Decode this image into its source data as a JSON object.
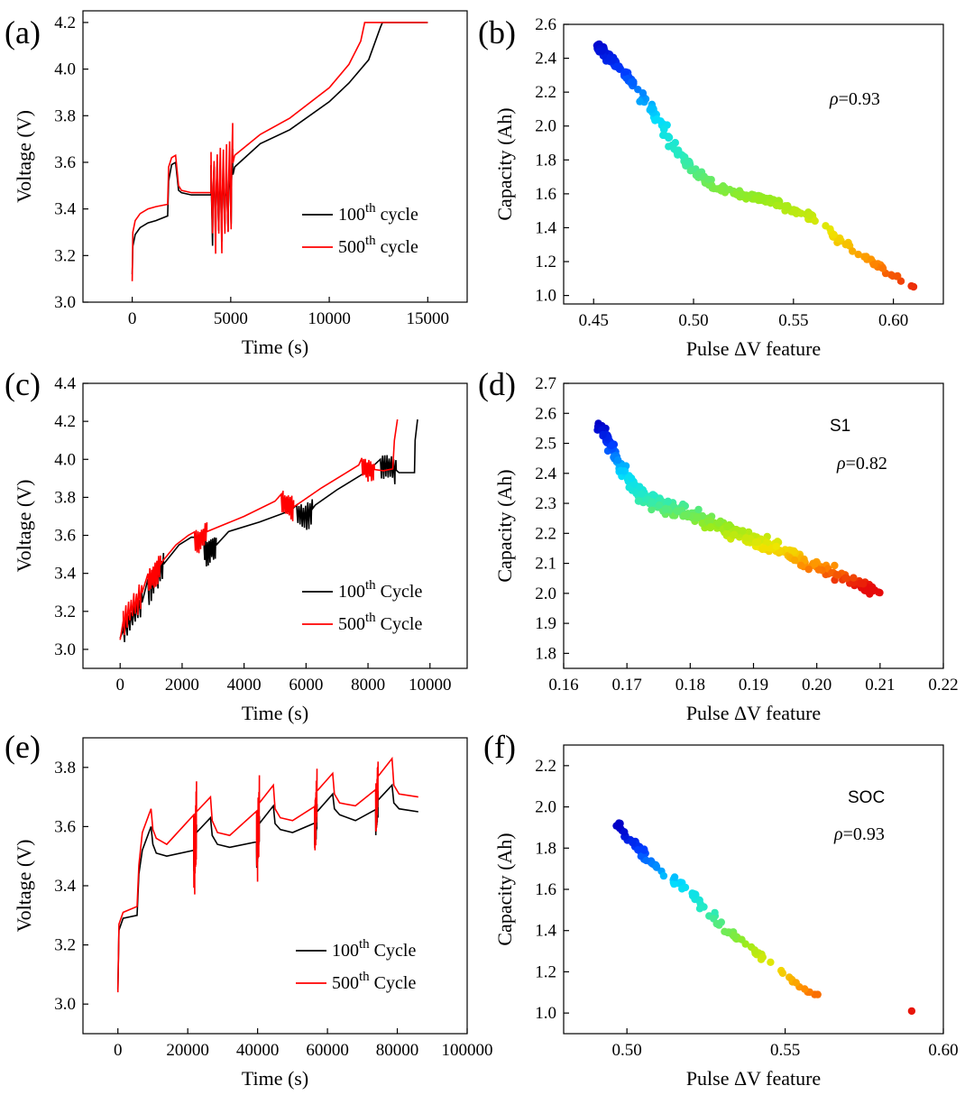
{
  "chart_data": [
    {
      "panel": "(a)",
      "type": "line",
      "xlabel": "Time (s)",
      "ylabel": "Voltage (V)",
      "xlim": [
        -2500,
        17000
      ],
      "ylim": [
        3.0,
        4.25
      ],
      "xticks": [
        0,
        5000,
        10000,
        15000
      ],
      "xtick_labels": [
        "0",
        "5000",
        "10000",
        "15000"
      ],
      "yticks": [
        3.0,
        3.2,
        3.4,
        3.6,
        3.8,
        4.0,
        4.2
      ],
      "ytick_labels": [
        "3.0",
        "3.2",
        "3.4",
        "3.6",
        "3.8",
        "4.0",
        "4.2"
      ],
      "legend": [
        {
          "base": "100",
          "sup": "th",
          "suffix": " cycle",
          "color": "#000000"
        },
        {
          "base": "500",
          "sup": "th",
          "suffix": " cycle",
          "color": "#ff0000"
        }
      ],
      "series": [
        {
          "name": "100th cycle",
          "color": "#000000",
          "x": [
            0,
            30,
            150,
            400,
            800,
            1200,
            1800,
            1850,
            2000,
            2200,
            2350,
            2500,
            3000,
            4000,
            4800,
            5100,
            5200,
            6500,
            8000,
            10000,
            11000,
            12000,
            12600,
            12700,
            15000
          ],
          "y": [
            3.12,
            3.24,
            3.29,
            3.32,
            3.34,
            3.35,
            3.37,
            3.52,
            3.59,
            3.6,
            3.48,
            3.47,
            3.46,
            3.46,
            3.46,
            3.55,
            3.58,
            3.68,
            3.74,
            3.86,
            3.94,
            4.04,
            4.18,
            4.2,
            4.2
          ],
          "osc": [
            {
              "x": 4000,
              "x2": 5100,
              "amp": 0.22
            }
          ]
        },
        {
          "name": "500th cycle",
          "color": "#ff0000",
          "x": [
            0,
            30,
            150,
            400,
            800,
            1200,
            1800,
            1850,
            2000,
            2200,
            2350,
            2500,
            3000,
            4000,
            4800,
            5100,
            5200,
            6500,
            8000,
            10000,
            11000,
            11600,
            11800,
            15000
          ],
          "y": [
            3.09,
            3.3,
            3.35,
            3.38,
            3.4,
            3.41,
            3.42,
            3.58,
            3.62,
            3.63,
            3.5,
            3.48,
            3.47,
            3.47,
            3.47,
            3.6,
            3.63,
            3.72,
            3.79,
            3.92,
            4.02,
            4.12,
            4.2,
            4.2
          ],
          "osc": [
            {
              "x": 4000,
              "x2": 5100,
              "amp": 0.3
            }
          ]
        }
      ]
    },
    {
      "panel": "(b)",
      "type": "scatter",
      "xlabel": "Pulse ΔV feature",
      "ylabel": "Capacity (Ah)",
      "xlim": [
        0.435,
        0.625
      ],
      "ylim": [
        0.95,
        2.6
      ],
      "xticks": [
        0.45,
        0.5,
        0.55,
        0.6
      ],
      "xtick_labels": [
        "0.45",
        "0.50",
        "0.55",
        "0.60"
      ],
      "yticks": [
        1.0,
        1.2,
        1.4,
        1.6,
        1.8,
        2.0,
        2.2,
        2.4,
        2.6
      ],
      "ytick_labels": [
        "1.0",
        "1.2",
        "1.4",
        "1.6",
        "1.8",
        "2.0",
        "2.2",
        "2.4",
        "2.6"
      ],
      "annotation": "ρ=0.93",
      "clim": [
        1.0,
        2.5
      ],
      "trend": [
        [
          0.452,
          2.47
        ],
        [
          0.46,
          2.38
        ],
        [
          0.47,
          2.25
        ],
        [
          0.48,
          2.08
        ],
        [
          0.49,
          1.88
        ],
        [
          0.5,
          1.74
        ],
        [
          0.51,
          1.65
        ],
        [
          0.52,
          1.61
        ],
        [
          0.54,
          1.55
        ],
        [
          0.56,
          1.46
        ],
        [
          0.58,
          1.27
        ],
        [
          0.6,
          1.12
        ],
        [
          0.61,
          1.05
        ]
      ],
      "x_dense": [
        0.452,
        0.575
      ],
      "x_sparse": [
        0.575,
        0.611
      ],
      "n": 300,
      "spread": 0.045,
      "xjitter": 0.004
    },
    {
      "panel": "(c)",
      "type": "line",
      "xlabel": "Time (s)",
      "ylabel": "Voltage (V)",
      "xlim": [
        -1200,
        11200
      ],
      "ylim": [
        2.9,
        4.4
      ],
      "xticks": [
        0,
        2000,
        4000,
        6000,
        8000,
        10000
      ],
      "xtick_labels": [
        "0",
        "2000",
        "4000",
        "6000",
        "8000",
        "10000"
      ],
      "yticks": [
        3.0,
        3.2,
        3.4,
        3.6,
        3.8,
        4.0,
        4.2,
        4.4
      ],
      "ytick_labels": [
        "3.0",
        "3.2",
        "3.4",
        "3.6",
        "3.8",
        "4.0",
        "4.2",
        "4.4"
      ],
      "legend": [
        {
          "base": "100",
          "sup": "th",
          "suffix": " Cycle",
          "color": "#000000"
        },
        {
          "base": "500",
          "sup": "th",
          "suffix": " Cycle",
          "color": "#ff0000"
        }
      ],
      "series": [
        {
          "name": "100th Cycle",
          "color": "#000000",
          "x": [
            0,
            100,
            700,
            1000,
            1400,
            1900,
            2300,
            2800,
            3100,
            3500,
            4500,
            5500,
            6000,
            6300,
            7000,
            8000,
            8600,
            9000,
            9500,
            9520,
            9600
          ],
          "y": [
            3.06,
            3.1,
            3.25,
            3.34,
            3.45,
            3.55,
            3.59,
            3.52,
            3.55,
            3.62,
            3.67,
            3.73,
            3.7,
            3.76,
            3.84,
            3.94,
            3.98,
            3.93,
            3.93,
            4.1,
            4.21
          ],
          "osc": [
            {
              "x": 100,
              "x2": 700,
              "amp": 0.08
            },
            {
              "x": 900,
              "x2": 1400,
              "amp": 0.09
            },
            {
              "x": 2700,
              "x2": 3100,
              "amp": 0.09
            },
            {
              "x": 5700,
              "x2": 6200,
              "amp": 0.09
            },
            {
              "x": 8400,
              "x2": 8900,
              "amp": 0.08
            }
          ]
        },
        {
          "name": "500th Cycle",
          "color": "#ff0000",
          "x": [
            0,
            100,
            700,
            1000,
            1400,
            1800,
            2200,
            2500,
            2800,
            4000,
            5000,
            5300,
            5600,
            6500,
            7700,
            8000,
            8500,
            8800,
            8850,
            8950
          ],
          "y": [
            3.05,
            3.15,
            3.3,
            3.38,
            3.47,
            3.55,
            3.6,
            3.57,
            3.62,
            3.7,
            3.78,
            3.78,
            3.75,
            3.85,
            3.97,
            3.95,
            3.94,
            3.95,
            4.1,
            4.21
          ],
          "osc": [
            {
              "x": 100,
              "x2": 700,
              "amp": 0.09
            },
            {
              "x": 900,
              "x2": 1300,
              "amp": 0.09
            },
            {
              "x": 2400,
              "x2": 2800,
              "amp": 0.08
            },
            {
              "x": 5200,
              "x2": 5600,
              "amp": 0.08
            },
            {
              "x": 7800,
              "x2": 8200,
              "amp": 0.07
            }
          ]
        }
      ]
    },
    {
      "panel": "(d)",
      "type": "scatter",
      "xlabel": "Pulse ΔV feature",
      "ylabel": "Capacity (Ah)",
      "xlim": [
        0.16,
        0.22
      ],
      "ylim": [
        1.75,
        2.7
      ],
      "xticks": [
        0.16,
        0.17,
        0.18,
        0.19,
        0.2,
        0.21,
        0.22
      ],
      "xtick_labels": [
        "0.16",
        "0.17",
        "0.18",
        "0.19",
        "0.20",
        "0.21",
        "0.22"
      ],
      "yticks": [
        1.8,
        1.9,
        2.0,
        2.1,
        2.2,
        2.3,
        2.4,
        2.5,
        2.6,
        2.7
      ],
      "ytick_labels": [
        "1.8",
        "1.9",
        "2.0",
        "2.1",
        "2.2",
        "2.3",
        "2.4",
        "2.5",
        "2.6",
        "2.7"
      ],
      "label": "S1",
      "annotation": "ρ=0.82",
      "clim": [
        2.02,
        2.56
      ],
      "trend": [
        [
          0.166,
          2.55
        ],
        [
          0.168,
          2.47
        ],
        [
          0.17,
          2.38
        ],
        [
          0.172,
          2.33
        ],
        [
          0.175,
          2.3
        ],
        [
          0.18,
          2.26
        ],
        [
          0.185,
          2.22
        ],
        [
          0.19,
          2.18
        ],
        [
          0.195,
          2.14
        ],
        [
          0.2,
          2.09
        ],
        [
          0.205,
          2.05
        ],
        [
          0.21,
          2.0
        ]
      ],
      "x_dense": [
        0.1655,
        0.203
      ],
      "x_sparse": [
        0.203,
        0.2105
      ],
      "n": 420,
      "spread": 0.045,
      "xjitter": 0.0008
    },
    {
      "panel": "(e)",
      "type": "line",
      "xlabel": "Time (s)",
      "ylabel": "Voltage (V)",
      "xlim": [
        -10000,
        100000
      ],
      "ylim": [
        2.9,
        3.9
      ],
      "xticks": [
        0,
        20000,
        40000,
        60000,
        80000,
        100000
      ],
      "xtick_labels": [
        "0",
        "20000",
        "40000",
        "60000",
        "80000",
        "100000"
      ],
      "yticks": [
        3.0,
        3.2,
        3.4,
        3.6,
        3.8
      ],
      "ytick_labels": [
        "3.0",
        "3.2",
        "3.4",
        "3.6",
        "3.8"
      ],
      "legend": [
        {
          "base": "100",
          "sup": "th",
          "suffix": " Cycle",
          "color": "#000000"
        },
        {
          "base": "500",
          "sup": "th",
          "suffix": " Cycle",
          "color": "#ff0000"
        }
      ],
      "series": [
        {
          "name": "100th Cycle",
          "color": "#000000",
          "x": [
            0,
            300,
            1500,
            5500,
            6000,
            7000,
            9500,
            10000,
            11000,
            14000,
            22000,
            22500,
            26500,
            27000,
            28500,
            32000,
            40000,
            40500,
            44500,
            45000,
            46500,
            50000,
            56500,
            57000,
            61500,
            62000,
            63500,
            68000,
            74000,
            74500,
            78500,
            79000,
            80500,
            86000
          ],
          "y": [
            3.05,
            3.25,
            3.29,
            3.3,
            3.44,
            3.52,
            3.6,
            3.54,
            3.51,
            3.5,
            3.49,
            3.58,
            3.63,
            3.57,
            3.54,
            3.53,
            3.52,
            3.61,
            3.67,
            3.61,
            3.59,
            3.58,
            3.58,
            3.65,
            3.71,
            3.66,
            3.64,
            3.62,
            3.63,
            3.69,
            3.74,
            3.68,
            3.66,
            3.65
          ],
          "osc": [
            {
              "x": 21700,
              "x2": 22500,
              "amp": 0.05
            },
            {
              "x": 39700,
              "x2": 40500,
              "amp": 0.06
            },
            {
              "x": 56300,
              "x2": 57000,
              "amp": 0.06
            },
            {
              "x": 73800,
              "x2": 74500,
              "amp": 0.06
            }
          ]
        },
        {
          "name": "500th Cycle",
          "color": "#ff0000",
          "x": [
            0,
            300,
            1500,
            5500,
            6000,
            7000,
            9500,
            10000,
            11000,
            14000,
            22000,
            22500,
            26500,
            27000,
            28500,
            32000,
            40000,
            40500,
            44500,
            45000,
            46500,
            50000,
            56500,
            57000,
            61500,
            62000,
            63500,
            68000,
            74000,
            74500,
            78500,
            79000,
            80500,
            86000
          ],
          "y": [
            3.04,
            3.27,
            3.31,
            3.33,
            3.47,
            3.58,
            3.66,
            3.59,
            3.56,
            3.54,
            3.54,
            3.65,
            3.7,
            3.62,
            3.58,
            3.57,
            3.56,
            3.68,
            3.74,
            3.66,
            3.63,
            3.62,
            3.62,
            3.72,
            3.78,
            3.71,
            3.68,
            3.67,
            3.67,
            3.77,
            3.83,
            3.74,
            3.71,
            3.7
          ],
          "osc": [
            {
              "x": 21700,
              "x2": 22500,
              "amp": 0.17
            },
            {
              "x": 39700,
              "x2": 40500,
              "amp": 0.15
            },
            {
              "x": 56300,
              "x2": 57000,
              "amp": 0.12
            },
            {
              "x": 73800,
              "x2": 74500,
              "amp": 0.12
            }
          ]
        }
      ]
    },
    {
      "panel": "(f)",
      "type": "scatter",
      "xlabel": "Pulse ΔV feature",
      "ylabel": "Capacity (Ah)",
      "xlim": [
        0.48,
        0.6
      ],
      "ylim": [
        0.9,
        2.3
      ],
      "xticks": [
        0.5,
        0.55,
        0.6
      ],
      "xtick_labels": [
        "0.50",
        "0.55",
        "0.60"
      ],
      "yticks": [
        1.0,
        1.2,
        1.4,
        1.6,
        1.8,
        2.0,
        2.2
      ],
      "ytick_labels": [
        "1.0",
        "1.2",
        "1.4",
        "1.6",
        "1.8",
        "2.0",
        "2.2"
      ],
      "label": "SOC",
      "annotation": "ρ=0.93",
      "clim": [
        1.0,
        1.9
      ],
      "trend": [
        [
          0.497,
          1.92
        ],
        [
          0.5,
          1.85
        ],
        [
          0.505,
          1.78
        ],
        [
          0.51,
          1.7
        ],
        [
          0.515,
          1.64
        ],
        [
          0.52,
          1.59
        ],
        [
          0.525,
          1.5
        ],
        [
          0.53,
          1.42
        ],
        [
          0.535,
          1.36
        ],
        [
          0.54,
          1.3
        ],
        [
          0.545,
          1.24
        ],
        [
          0.55,
          1.18
        ],
        [
          0.556,
          1.12
        ],
        [
          0.562,
          1.07
        ],
        [
          0.59,
          1.01
        ]
      ],
      "x_dense": [
        0.497,
        0.547
      ],
      "x_sparse": [
        0.547,
        0.562
      ],
      "extra_points": [
        [
          0.59,
          1.01
        ]
      ],
      "n": 120,
      "spread": 0.04,
      "xjitter": 0.0015
    }
  ]
}
